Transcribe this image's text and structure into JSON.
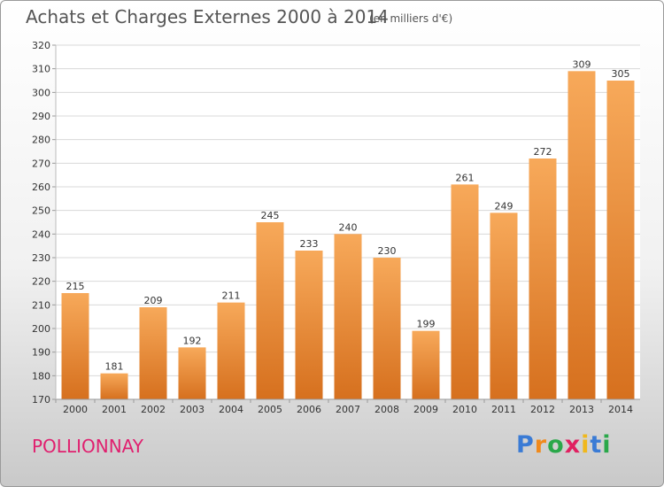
{
  "header": {
    "title": "Achats et Charges Externes 2000 à 2014",
    "unit": "(en milliers d'€)"
  },
  "footer": {
    "commune": "POLLIONNAY",
    "logo_letters": [
      "P",
      "r",
      "o",
      "x",
      "i",
      "t",
      "i"
    ],
    "logo_colors": [
      "#3a7bd5",
      "#f08a1c",
      "#2aa84a",
      "#e02060",
      "#f0b81c",
      "#3a7bd5",
      "#2aa84a"
    ]
  },
  "colors": {
    "bar_light": "#f7a95a",
    "bar_dark": "#d6701e",
    "grid": "#d8d8d8",
    "title": "#555555",
    "commune": "#e0206f"
  },
  "chart_data": {
    "type": "bar",
    "title": "Achats et Charges Externes 2000 à 2014",
    "subtitle": "(en milliers d'€)",
    "categories": [
      "2000",
      "2001",
      "2002",
      "2003",
      "2004",
      "2005",
      "2006",
      "2007",
      "2008",
      "2009",
      "2010",
      "2011",
      "2012",
      "2013",
      "2014"
    ],
    "values": [
      215,
      181,
      209,
      192,
      211,
      245,
      233,
      240,
      230,
      199,
      261,
      249,
      272,
      309,
      305
    ],
    "value_labels": [
      "215",
      "181",
      "209",
      "192",
      "211",
      "245",
      "233",
      "240",
      "230",
      "199",
      "261",
      "249",
      "272",
      "309",
      "305"
    ],
    "ylim": [
      170,
      320
    ],
    "yticks": [
      170,
      180,
      190,
      200,
      210,
      220,
      230,
      240,
      250,
      260,
      270,
      280,
      290,
      300,
      310,
      320
    ],
    "grid": true,
    "xlabel": "",
    "ylabel": ""
  }
}
